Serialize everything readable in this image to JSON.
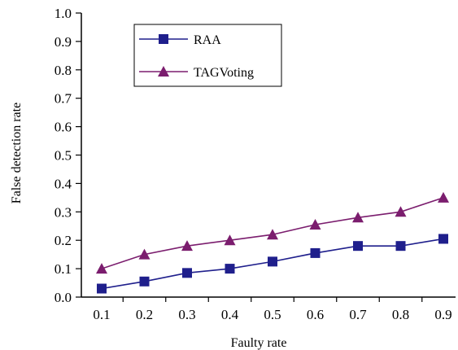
{
  "chart_data": {
    "type": "line",
    "title": "",
    "xlabel": "Faulty rate",
    "ylabel": "False detection rate",
    "x": [
      "0.1",
      "0.2",
      "0.3",
      "0.4",
      "0.5",
      "0.6",
      "0.7",
      "0.8",
      "0.9"
    ],
    "y_ticks": [
      "0.0",
      "0.1",
      "0.2",
      "0.3",
      "0.4",
      "0.5",
      "0.6",
      "0.7",
      "0.8",
      "0.9",
      "1.0"
    ],
    "ylim": [
      0,
      1.0
    ],
    "grid": false,
    "legend_position": "top-left",
    "series": [
      {
        "name": "RAA",
        "color": "#1f1f8c",
        "marker": "square",
        "values": [
          0.03,
          0.055,
          0.085,
          0.1,
          0.125,
          0.155,
          0.18,
          0.18,
          0.205
        ]
      },
      {
        "name": "TAGVoting",
        "color": "#7b1d6e",
        "marker": "triangle",
        "values": [
          0.1,
          0.15,
          0.18,
          0.2,
          0.22,
          0.255,
          0.28,
          0.3,
          0.35
        ]
      }
    ]
  }
}
